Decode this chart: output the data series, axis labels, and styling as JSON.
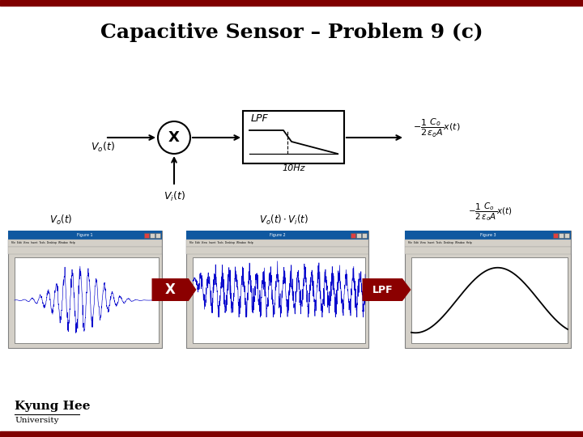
{
  "title": "Capacitive Sensor – Problem 9 (c)",
  "title_fontsize": 18,
  "bg_color": "#ffffff",
  "bar_color": "#800000",
  "bar_thickness": 7,
  "dark_red": "#8b0000",
  "kyung_hee_text": "Kyung Hee",
  "university_text": "University",
  "fig_width": 7.2,
  "fig_height": 5.4,
  "fig_dpi": 100
}
